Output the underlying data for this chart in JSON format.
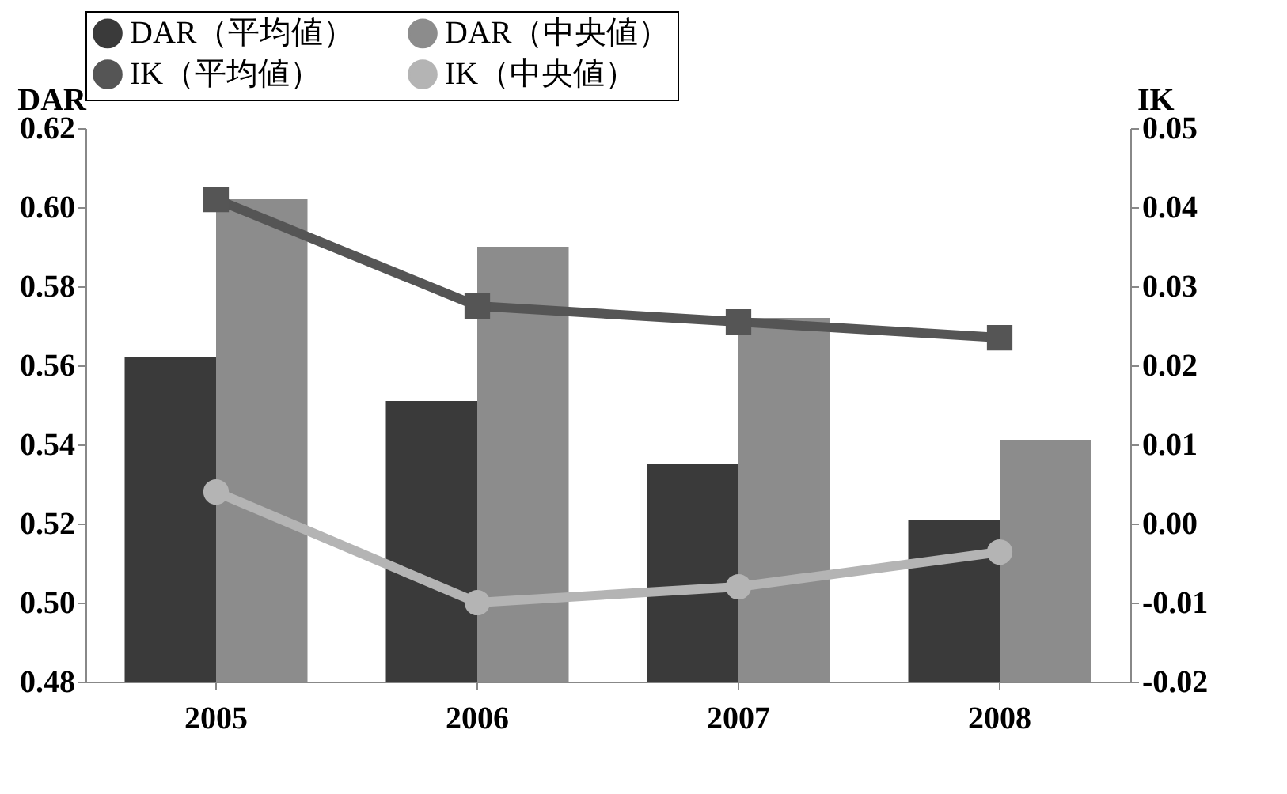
{
  "chart_data": {
    "type": "bar",
    "categories": [
      "2005",
      "2006",
      "2007",
      "2008"
    ],
    "ylabel": "DAR",
    "y2label": "IK",
    "ylim": [
      0.48,
      0.62
    ],
    "yticks": [
      {
        "value": 0.48,
        "label": "0.48"
      },
      {
        "value": 0.5,
        "label": "0.50"
      },
      {
        "value": 0.52,
        "label": "0.52"
      },
      {
        "value": 0.54,
        "label": "0.54"
      },
      {
        "value": 0.56,
        "label": "0.56"
      },
      {
        "value": 0.58,
        "label": "0.58"
      },
      {
        "value": 0.6,
        "label": "0.60"
      },
      {
        "value": 0.62,
        "label": "0.62"
      }
    ],
    "y2lim": [
      -0.02,
      0.05
    ],
    "y2ticks": [
      {
        "value": -0.02,
        "label": "-0.02"
      },
      {
        "value": -0.01,
        "label": "-0.01"
      },
      {
        "value": 0,
        "label": "0.00"
      },
      {
        "value": 0.01,
        "label": "0.01"
      },
      {
        "value": 0.02,
        "label": "0.02"
      },
      {
        "value": 0.03,
        "label": "0.03"
      },
      {
        "value": 0.04,
        "label": "0.04"
      },
      {
        "value": 0.05,
        "label": "0.05"
      }
    ],
    "legend": "top",
    "series": [
      {
        "name": "DAR（平均値）",
        "color": "#3a3a3a",
        "values": [
          0.562,
          0.551,
          0.535,
          0.521
        ]
      },
      {
        "name": "DAR（中央値）",
        "color": "#8c8c8c",
        "values": [
          0.602,
          0.59,
          0.572,
          0.541
        ]
      },
      {
        "name": "IK（平均値）",
        "type": "line",
        "axis": "y2",
        "marker": "square",
        "color": "#555555",
        "values": [
          0.041,
          0.0275,
          0.0255,
          0.0235
        ]
      },
      {
        "name": "IK（中央値）",
        "type": "line",
        "axis": "y2",
        "marker": "circle",
        "color": "#b4b4b4",
        "values": [
          0.004,
          -0.01,
          -0.008,
          -0.0036
        ]
      }
    ]
  }
}
